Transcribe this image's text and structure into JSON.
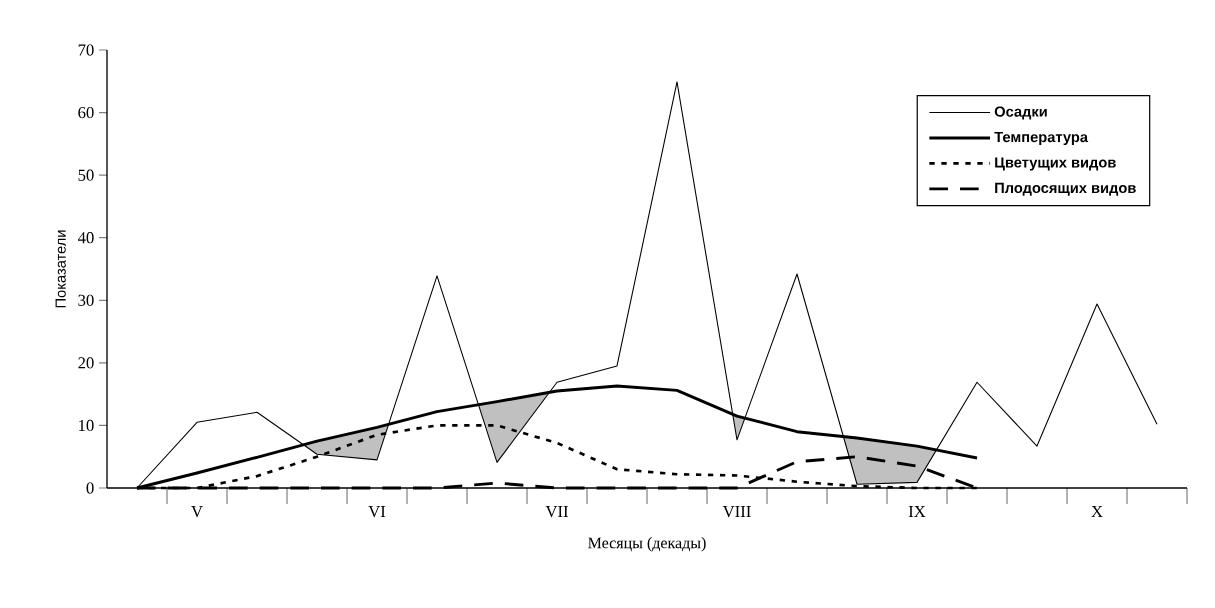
{
  "chart_data": {
    "type": "line",
    "xlabel": "Месяцы (декады)",
    "ylabel": "Показатели",
    "categories": [
      null,
      "V",
      null,
      null,
      "VI",
      null,
      null,
      "VII",
      null,
      null,
      "VIII",
      null,
      null,
      "IX",
      null,
      null,
      "X",
      null
    ],
    "series": [
      {
        "name": "Осадки",
        "color": "#000000",
        "line_style": "solid",
        "values": [
          0,
          10.5,
          12.1,
          5.4,
          4.5,
          33.9,
          4.1,
          16.9,
          19.5,
          64.9,
          7.7,
          34.2,
          0.6,
          0.9,
          16.9,
          6.7,
          29.4,
          10.2
        ]
      },
      {
        "name": "Температура",
        "color": "#000000",
        "line_style": "solid",
        "values": [
          0,
          2.4,
          4.9,
          7.5,
          9.7,
          12.2,
          13.8,
          15.5,
          16.3,
          15.6,
          11.5,
          9.0,
          8.0,
          6.7,
          4.8,
          null,
          null,
          null
        ]
      },
      {
        "name": "Цветущих видов",
        "color": "#000000",
        "line_style": "dotted",
        "values": [
          0,
          0,
          1.9,
          5.0,
          8.5,
          10,
          10,
          7.2,
          3.0,
          2.2,
          2.0,
          1.0,
          0.3,
          0,
          0,
          null,
          null,
          null
        ]
      },
      {
        "name": "Плодосящих видов",
        "color": "#000000",
        "line_style": "dashed",
        "values": [
          0,
          0,
          0,
          0,
          0,
          0,
          0.8,
          0,
          0,
          0,
          0,
          4.2,
          5.0,
          3.5,
          0,
          null,
          null,
          null
        ]
      }
    ],
    "ylim": [
      0,
      70
    ],
    "yticks": [
      0,
      10,
      20,
      30,
      40,
      50,
      60,
      70
    ],
    "legend": "top right",
    "grid": false,
    "marker": "none"
  }
}
